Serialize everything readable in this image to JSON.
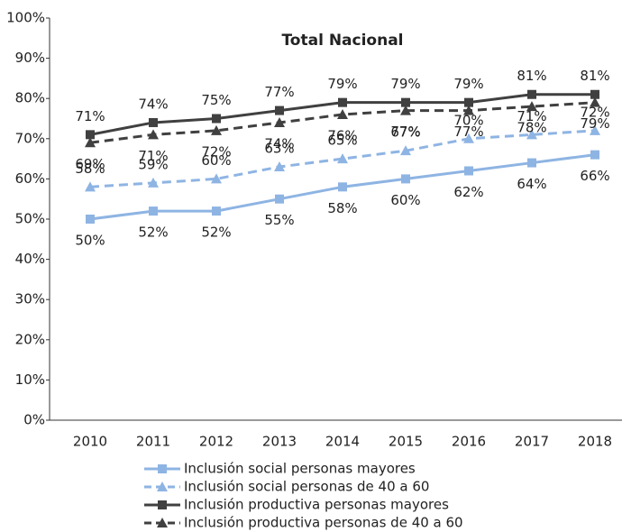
{
  "chart_data": {
    "type": "line",
    "title": "Total Nacional",
    "categories": [
      "2010",
      "2011",
      "2012",
      "2013",
      "2014",
      "2015",
      "2016",
      "2017",
      "2018"
    ],
    "ylim": [
      0,
      100
    ],
    "yticks": [
      {
        "value": 0,
        "label": "0%"
      },
      {
        "value": 10,
        "label": "10%"
      },
      {
        "value": 20,
        "label": "20%"
      },
      {
        "value": 30,
        "label": "30%"
      },
      {
        "value": 40,
        "label": "40%"
      },
      {
        "value": 50,
        "label": "50%"
      },
      {
        "value": 60,
        "label": "60%"
      },
      {
        "value": 70,
        "label": "70%"
      },
      {
        "value": 80,
        "label": "80%"
      },
      {
        "value": 90,
        "label": "90%"
      },
      {
        "value": 100,
        "label": "100%"
      }
    ],
    "grid": false,
    "legend": "bottom",
    "series": [
      {
        "name": "Inclusión social personas mayores",
        "color": "#8eb4e3",
        "dash": false,
        "marker": "square",
        "label_side": "below",
        "values": [
          50,
          52,
          52,
          55,
          58,
          60,
          62,
          64,
          66
        ],
        "value_labels": [
          "50%",
          "52%",
          "52%",
          "55%",
          "58%",
          "60%",
          "62%",
          "64%",
          "66%"
        ]
      },
      {
        "name": "Inclusión social personas de 40 a 60",
        "color": "#8eb4e3",
        "dash": true,
        "marker": "triangle",
        "label_side": "above",
        "values": [
          58,
          59,
          60,
          63,
          65,
          67,
          70,
          71,
          72
        ],
        "value_labels": [
          "58%",
          "59%",
          "60%",
          "63%",
          "65%",
          "67%",
          "70%",
          "71%",
          "72%"
        ]
      },
      {
        "name": "Inclusión productiva personas mayores",
        "color": "#404040",
        "dash": false,
        "marker": "square",
        "label_side": "above",
        "values": [
          71,
          74,
          75,
          77,
          79,
          79,
          79,
          81,
          81
        ],
        "value_labels": [
          "71%",
          "74%",
          "75%",
          "77%",
          "79%",
          "79%",
          "79%",
          "81%",
          "81%"
        ]
      },
      {
        "name": "Inclusión productiva personas de 40 a 60",
        "color": "#404040",
        "dash": true,
        "marker": "triangle",
        "label_side": "below",
        "values": [
          69,
          71,
          72,
          74,
          76,
          77,
          77,
          78,
          79
        ],
        "value_labels": [
          "69%",
          "71%",
          "72%",
          "74%",
          "76%",
          "77%",
          "77%",
          "78%",
          "79%"
        ]
      }
    ]
  }
}
